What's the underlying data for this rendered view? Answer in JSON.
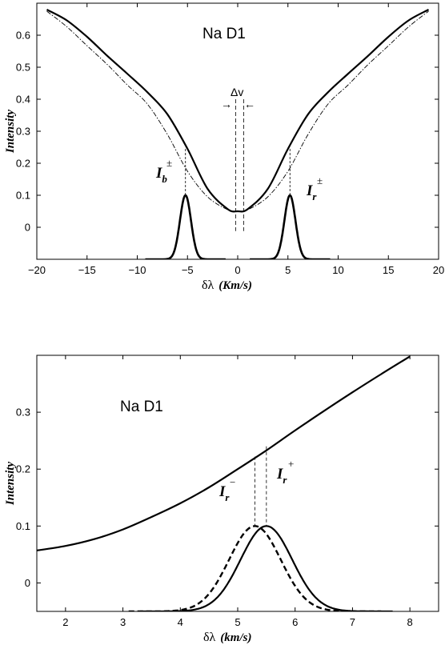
{
  "chart_data": [
    {
      "type": "line",
      "title": "Na D1",
      "xlabel_symbol": "δλ",
      "xlabel_unit": "(Km/s)",
      "ylabel": "Intensity",
      "xlim": [
        -20,
        20
      ],
      "ylim": [
        -0.1,
        0.7
      ],
      "xticks": [
        -20,
        -15,
        -10,
        -5,
        0,
        5,
        10,
        15,
        20
      ],
      "xtick_labels": [
        "−20",
        "−15",
        "−10",
        "−5",
        "0",
        "5",
        "10",
        "15",
        "20"
      ],
      "yticks": [
        0,
        0.1,
        0.2,
        0.3,
        0.4,
        0.5,
        0.6
      ],
      "ytick_labels": [
        "0",
        "0.1",
        "0.2",
        "0.3",
        "0.4",
        "0.5",
        "0.6"
      ],
      "grid": false,
      "series": [
        {
          "style": "solid",
          "x": [
            -19,
            -17,
            -15,
            -13,
            -11,
            -9,
            -7,
            -5,
            -3,
            -1,
            0,
            1,
            3,
            5,
            7,
            9,
            11,
            13,
            15,
            17,
            19
          ],
          "y": [
            0.68,
            0.646,
            0.595,
            0.536,
            0.48,
            0.422,
            0.353,
            0.245,
            0.12,
            0.057,
            0.05,
            0.057,
            0.12,
            0.245,
            0.353,
            0.422,
            0.48,
            0.536,
            0.595,
            0.646,
            0.68
          ]
        },
        {
          "style": "dash-dot",
          "x": [
            -19,
            -17,
            -15,
            -13,
            -11,
            -9,
            -7,
            -5,
            -3,
            -1,
            0,
            1,
            3,
            5,
            7,
            9,
            11,
            13,
            15,
            17,
            19
          ],
          "y": [
            0.675,
            0.626,
            0.567,
            0.509,
            0.445,
            0.385,
            0.29,
            0.175,
            0.095,
            0.055,
            0.05,
            0.055,
            0.095,
            0.175,
            0.29,
            0.385,
            0.445,
            0.509,
            0.567,
            0.626,
            0.675
          ]
        },
        {
          "style": "solid-thick",
          "peak_center": -5.2,
          "peak_height": 0.1,
          "baseline": -0.1,
          "sigma": 0.55
        },
        {
          "style": "solid-thick",
          "peak_center": 5.2,
          "peak_height": 0.1,
          "baseline": -0.1,
          "sigma": 0.55
        }
      ],
      "markers": {
        "left_mark_x": -5.2,
        "right_mark_x": 5.2,
        "dv_line_1": -0.2,
        "dv_line_2": 0.6
      },
      "annotations": {
        "dv_label": "Δv",
        "ib_main": "I",
        "ib_sub": "b",
        "ib_sup": "±",
        "ir_main": "I",
        "ir_sub": "r",
        "ir_sup": "±",
        "arrow_left": "→",
        "arrow_right": "←"
      }
    },
    {
      "type": "line",
      "title": "Na D1",
      "xlabel_symbol": "δλ",
      "xlabel_unit": "(km/s)",
      "ylabel": "Intensity",
      "xlim": [
        1.5,
        8.5
      ],
      "ylim": [
        -0.05,
        0.4
      ],
      "xticks": [
        2,
        3,
        4,
        5,
        6,
        7,
        8
      ],
      "xtick_labels": [
        "2",
        "3",
        "4",
        "5",
        "6",
        "7",
        "8"
      ],
      "yticks": [
        0,
        0.1,
        0.2,
        0.3
      ],
      "ytick_labels": [
        "0",
        "0.1",
        "0.2",
        "0.3"
      ],
      "grid": false,
      "series": [
        {
          "style": "solid",
          "x": [
            1.5,
            2.0,
            2.5,
            3.0,
            3.5,
            4.0,
            4.5,
            5.0,
            5.5,
            6.0,
            6.5,
            7.0,
            7.5,
            8.0
          ],
          "y": [
            0.057,
            0.065,
            0.077,
            0.094,
            0.116,
            0.14,
            0.168,
            0.2,
            0.233,
            0.268,
            0.302,
            0.335,
            0.367,
            0.398
          ]
        },
        {
          "style": "dashed",
          "peak_center": 5.3,
          "peak_height": 0.1,
          "baseline": -0.05,
          "sigma": 0.45
        },
        {
          "style": "solid",
          "peak_center": 5.5,
          "peak_height": 0.1,
          "baseline": -0.05,
          "sigma": 0.45
        }
      ],
      "markers": {
        "ir_minus_x": 5.3,
        "ir_plus_x": 5.5
      },
      "annotations": {
        "irm_main": "I",
        "irm_sub": "r",
        "irm_sup": "−",
        "irp_main": "I",
        "irp_sub": "r",
        "irp_sup": "+"
      }
    }
  ]
}
